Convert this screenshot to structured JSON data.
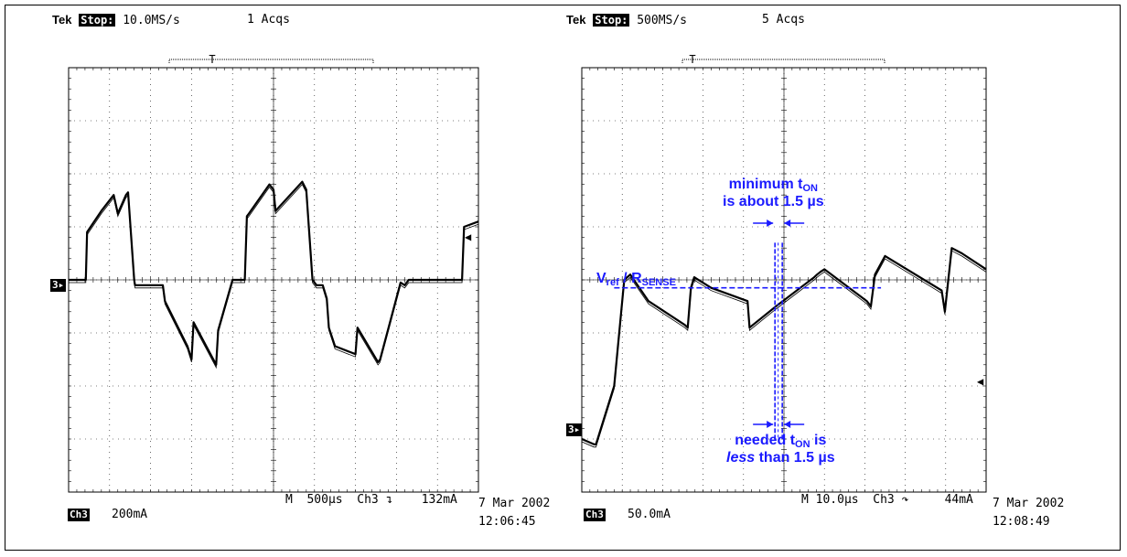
{
  "left": {
    "header": {
      "tek": "Tek",
      "stop": "Stop:",
      "rate": "10.0MS/s",
      "acqs": "1 Acqs"
    },
    "channel": {
      "badge": "Ch3",
      "scale": "200mA"
    },
    "timebase": {
      "m": "M",
      "time": "500µs",
      "ch": "Ch3",
      "level": "132mA"
    },
    "date": "7 Mar 2002",
    "time": "12:06:45",
    "ground_marker": "3",
    "trigger_marker": "T"
  },
  "right": {
    "header": {
      "tek": "Tek",
      "stop": "Stop:",
      "rate": "500MS/s",
      "acqs": "5 Acqs"
    },
    "channel": {
      "badge": "Ch3",
      "scale": "50.0mA"
    },
    "timebase": {
      "m": "M",
      "time": "10.0µs",
      "ch": "Ch3",
      "level": "44mA"
    },
    "date": "7 Mar 2002",
    "time": "12:08:49",
    "ground_marker": "3",
    "trigger_marker": "T"
  },
  "annotations": {
    "vref_main": "V",
    "vref_sub": "ref",
    "vref_sep": " / R",
    "rsense_sub": "SENSE",
    "min_line1_a": "minimum t",
    "min_line1_sub": "ON",
    "min_line2": "is about 1.5 µs",
    "need_line1_a": "needed t",
    "need_line1_sub": "ON",
    "need_line1_b": " is",
    "need_line2_italic": "less",
    "need_line2_rest": " than 1.5 µs"
  },
  "colors": {
    "trace": "#000000",
    "annotation": "#1a1aff",
    "grid": "#000000"
  },
  "chart_data": [
    {
      "type": "line",
      "title": "",
      "xlabel": "",
      "ylabel": "",
      "x_divisions": 10,
      "y_divisions": 8,
      "x": [
        0.0,
        0.42,
        0.45,
        0.8,
        1.1,
        1.2,
        1.4,
        1.45,
        1.6,
        1.62,
        2.3,
        2.35,
        2.9,
        3.0,
        3.05,
        3.6,
        3.65,
        4.0,
        4.05,
        4.2,
        4.3,
        4.35,
        4.4,
        4.9,
        5.0,
        5.05,
        5.7,
        5.8,
        5.95,
        6.05,
        6.2,
        6.3,
        6.35,
        6.5,
        7.0,
        7.05,
        7.55,
        7.6,
        8.1,
        8.2,
        8.3,
        8.4,
        8.6,
        8.75,
        8.8,
        9.3,
        9.6,
        9.65,
        10.0
      ],
      "y": [
        0.0,
        0.0,
        0.9,
        1.3,
        1.6,
        1.25,
        1.6,
        1.65,
        0.0,
        -0.1,
        -0.1,
        -0.4,
        -1.25,
        -1.5,
        -0.8,
        -1.6,
        -0.95,
        0.0,
        0.0,
        0.0,
        0.0,
        1.2,
        1.25,
        1.8,
        1.7,
        1.3,
        1.85,
        1.7,
        0.0,
        -0.1,
        -0.1,
        -0.35,
        -0.9,
        -1.25,
        -1.4,
        -0.9,
        -1.55,
        -1.5,
        -0.05,
        -0.1,
        0.0,
        0.0,
        0.0,
        0.0,
        0.0,
        0.0,
        0.0,
        1.0,
        1.1
      ]
    },
    {
      "type": "line",
      "title": "",
      "xlabel": "",
      "ylabel": "",
      "x_divisions": 10,
      "y_divisions": 8,
      "x": [
        0.0,
        0.3,
        0.35,
        0.8,
        1.05,
        1.2,
        1.65,
        2.55,
        2.62,
        2.7,
        2.78,
        3.2,
        4.1,
        4.15,
        4.8,
        5.75,
        5.82,
        5.9,
        6.0,
        7.05,
        7.15,
        7.25,
        7.5,
        8.9,
        8.98,
        9.15,
        9.4,
        10.0
      ],
      "y": [
        -3.0,
        -3.1,
        -3.1,
        -2.0,
        0.0,
        0.1,
        -0.4,
        -0.85,
        -0.9,
        -0.15,
        0.05,
        -0.15,
        -0.4,
        -0.9,
        -0.5,
        0.05,
        0.1,
        0.15,
        0.2,
        -0.4,
        -0.5,
        0.1,
        0.45,
        -0.2,
        -0.6,
        0.6,
        0.5,
        0.2
      ]
    }
  ]
}
